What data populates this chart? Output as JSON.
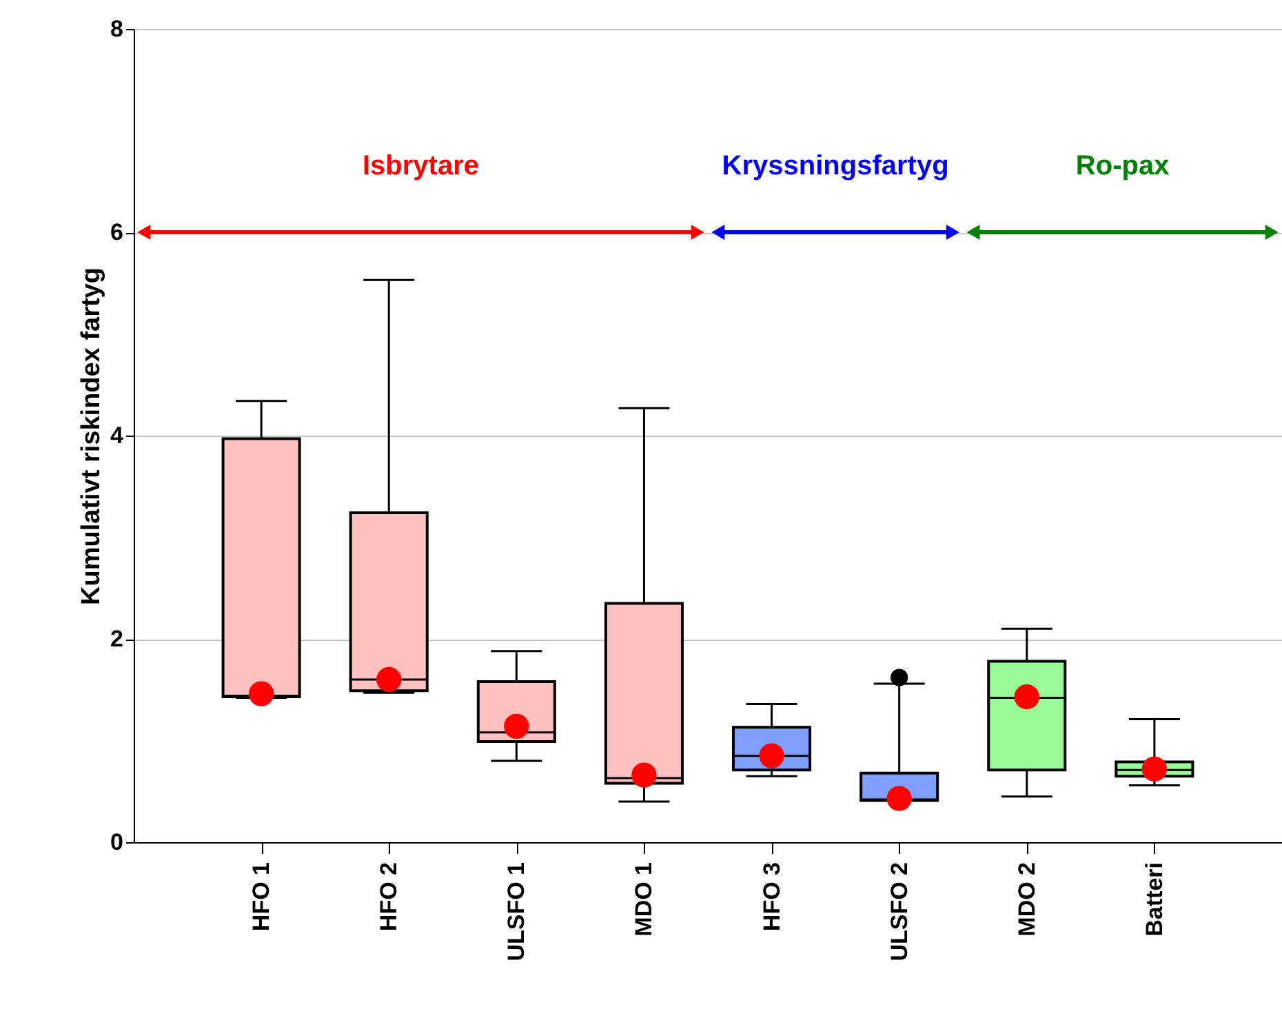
{
  "chart_data": {
    "type": "box",
    "ylabel": "Kumulativt riskindex fartyg",
    "categories": [
      "HFO 1",
      "HFO 2",
      "ULSFO 1",
      "MDO 1",
      "HFO 3",
      "ULSFO 2",
      "MDO 2",
      "Batteri"
    ],
    "colors": [
      "#ffc0c0",
      "#ffc0c0",
      "#ffc0c0",
      "#ffc0c0",
      "#80a0ff",
      "#80a0ff",
      "#98fb98",
      "#98fb98"
    ],
    "boxes": [
      {
        "low": 1.42,
        "q1": 1.43,
        "median": 1.44,
        "q3": 3.97,
        "high": 4.34,
        "mean": 1.46
      },
      {
        "low": 1.47,
        "q1": 1.49,
        "median": 1.6,
        "q3": 3.24,
        "high": 5.53,
        "mean": 1.6
      },
      {
        "low": 0.8,
        "q1": 0.99,
        "median": 1.08,
        "q3": 1.58,
        "high": 1.88,
        "mean": 1.14
      },
      {
        "low": 0.4,
        "q1": 0.58,
        "median": 0.63,
        "q3": 2.35,
        "high": 4.27,
        "mean": 0.66
      },
      {
        "low": 0.65,
        "q1": 0.71,
        "median": 0.85,
        "q3": 1.13,
        "high": 1.36,
        "mean": 0.85
      },
      {
        "low": 0.41,
        "q1": 0.41,
        "median": 0.42,
        "q3": 0.68,
        "high": 1.56,
        "mean": 0.43,
        "outliers": [
          1.62
        ]
      },
      {
        "low": 0.45,
        "q1": 0.71,
        "median": 1.42,
        "q3": 1.78,
        "high": 2.1,
        "mean": 1.43
      },
      {
        "low": 0.56,
        "q1": 0.65,
        "median": 0.71,
        "q3": 0.79,
        "high": 1.21,
        "mean": 0.72
      }
    ],
    "annotations": [
      "Isbrytare",
      "Kryssningsfartyg",
      "Ro-pax"
    ],
    "ylim": [
      0,
      8
    ],
    "yticks": [
      0,
      2,
      4,
      6,
      8
    ],
    "grid": "y"
  }
}
